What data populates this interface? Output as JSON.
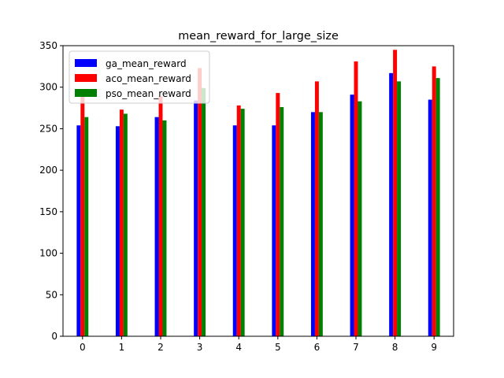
{
  "chart_data": {
    "type": "bar",
    "title": "mean_reward_for_large_size",
    "xlabel": "",
    "ylabel": "",
    "categories": [
      "0",
      "1",
      "2",
      "3",
      "4",
      "5",
      "6",
      "7",
      "8",
      "9"
    ],
    "ylim": [
      0,
      350
    ],
    "xlim": [
      -0.5,
      9.5
    ],
    "yticks": [
      0,
      50,
      100,
      150,
      200,
      250,
      300,
      350
    ],
    "grid": false,
    "legend_position": "upper-left",
    "series": [
      {
        "name": "ga_mean_reward",
        "color": "#0000ff",
        "values": [
          254,
          253,
          264,
          284,
          254,
          254,
          270,
          291,
          317,
          285
        ]
      },
      {
        "name": "aco_mean_reward",
        "color": "#ff0000",
        "values": [
          292,
          273,
          289,
          323,
          278,
          293,
          307,
          331,
          345,
          325
        ]
      },
      {
        "name": "pso_mean_reward",
        "color": "#008000",
        "values": [
          264,
          268,
          260,
          299,
          274,
          276,
          270,
          283,
          307,
          311
        ]
      }
    ]
  }
}
